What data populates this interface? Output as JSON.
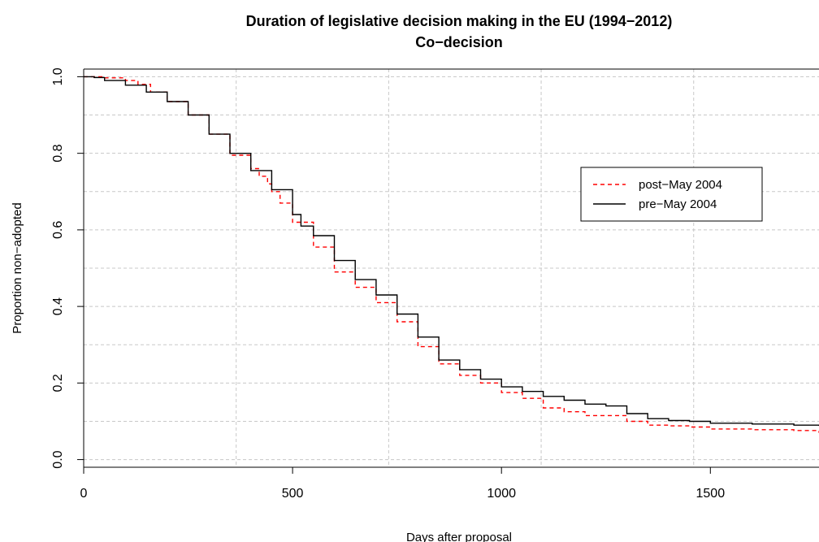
{
  "chart_data": {
    "type": "line",
    "title": "Duration of legislative decision making in the EU (1994−2012)",
    "subtitle": "Co−decision",
    "xlabel": "Days after proposal",
    "ylabel": "Proportion non−adopted",
    "xlim": [
      0,
      1760
    ],
    "ylim": [
      -0.02,
      1.02
    ],
    "xticks": [
      0,
      500,
      1000,
      1500
    ],
    "xtick_labels": [
      "0",
      "500",
      "1000",
      "1500"
    ],
    "yticks": [
      0.0,
      0.2,
      0.4,
      0.6,
      0.8,
      1.0
    ],
    "ytick_labels": [
      "0.0",
      "0.2",
      "0.4",
      "0.6",
      "0.8",
      "1.0"
    ],
    "grid": true,
    "grid_x": [
      365,
      730,
      1095,
      1460
    ],
    "grid_y": [
      0.0,
      0.1,
      0.2,
      0.3,
      0.4,
      0.5,
      0.6,
      0.7,
      0.8,
      0.9,
      1.0
    ],
    "legend_position": "right",
    "series": [
      {
        "name": "post−May 2004",
        "color": "#ff0000",
        "style": "dashed",
        "x": [
          0,
          50,
          100,
          130,
          160,
          200,
          250,
          300,
          350,
          400,
          420,
          440,
          450,
          470,
          500,
          550,
          600,
          650,
          700,
          750,
          800,
          850,
          900,
          950,
          1000,
          1050,
          1100,
          1150,
          1200,
          1300,
          1350,
          1400,
          1450,
          1500,
          1600,
          1700,
          1760
        ],
        "y": [
          1.0,
          0.997,
          0.99,
          0.98,
          0.96,
          0.935,
          0.9,
          0.85,
          0.795,
          0.76,
          0.74,
          0.72,
          0.7,
          0.67,
          0.62,
          0.555,
          0.49,
          0.45,
          0.41,
          0.36,
          0.295,
          0.25,
          0.22,
          0.2,
          0.175,
          0.16,
          0.135,
          0.125,
          0.115,
          0.1,
          0.09,
          0.088,
          0.085,
          0.08,
          0.078,
          0.076,
          0.07
        ]
      },
      {
        "name": "pre−May 2004",
        "color": "#000000",
        "style": "solid",
        "x": [
          0,
          25,
          50,
          100,
          150,
          200,
          250,
          300,
          350,
          400,
          450,
          500,
          520,
          550,
          600,
          650,
          700,
          750,
          800,
          850,
          900,
          950,
          1000,
          1050,
          1100,
          1150,
          1200,
          1250,
          1300,
          1350,
          1400,
          1450,
          1500,
          1600,
          1700,
          1760
        ],
        "y": [
          1.0,
          0.998,
          0.99,
          0.978,
          0.96,
          0.935,
          0.9,
          0.85,
          0.8,
          0.755,
          0.705,
          0.64,
          0.61,
          0.585,
          0.52,
          0.47,
          0.43,
          0.38,
          0.32,
          0.26,
          0.235,
          0.21,
          0.19,
          0.178,
          0.165,
          0.155,
          0.145,
          0.14,
          0.12,
          0.107,
          0.102,
          0.1,
          0.095,
          0.093,
          0.09,
          0.088
        ]
      }
    ]
  }
}
